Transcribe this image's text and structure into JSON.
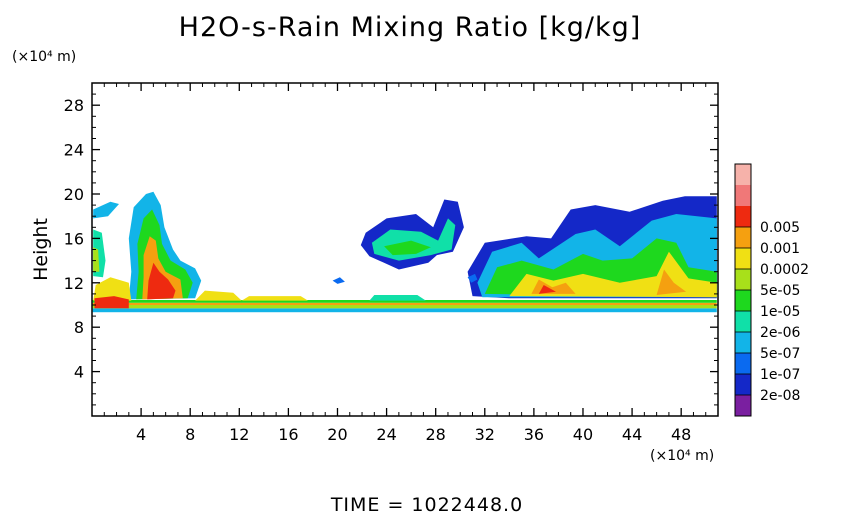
{
  "chart_data": {
    "type": "heatmap",
    "title": "H2O-s-Rain Mixing Ratio [kg/kg]",
    "footer": "TIME = 1022448.0",
    "y_axis": {
      "label": "Height",
      "unit_label": "(×10⁴ m)",
      "range": [
        0,
        30
      ],
      "ticks": [
        "4",
        "8",
        "12",
        "16",
        "20",
        "24",
        "28"
      ]
    },
    "x_axis": {
      "unit_label": "(×10⁴ m)",
      "range": [
        0,
        51
      ],
      "ticks": [
        "4",
        "8",
        "12",
        "16",
        "20",
        "24",
        "28",
        "32",
        "36",
        "40",
        "44",
        "48"
      ]
    },
    "colorbar": {
      "levels": [
        "2e-08",
        "1e-07",
        "5e-07",
        "2e-06",
        "1e-05",
        "5e-05",
        "0.0002",
        "0.001",
        "0.005"
      ],
      "colors": [
        "#7a1fa0",
        "#1428c8",
        "#0a6af0",
        "#12b4e8",
        "#10e0a8",
        "#1ed81e",
        "#a8e01a",
        "#f0e014",
        "#f5a010",
        "#ee2a10",
        "#f07878",
        "#f6b2aa"
      ]
    }
  }
}
